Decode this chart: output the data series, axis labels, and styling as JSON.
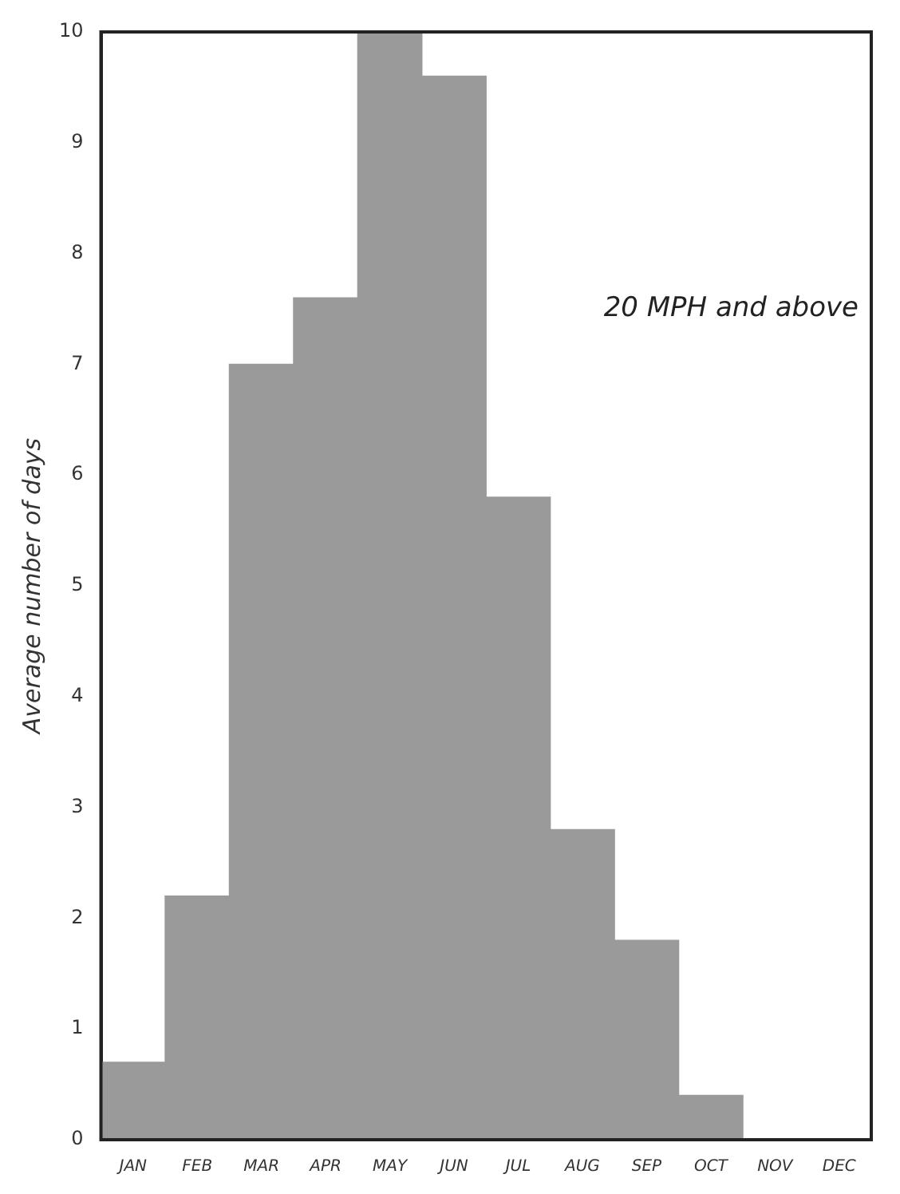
{
  "chart_data": {
    "type": "bar",
    "ylabel": "Average number of days",
    "categories": [
      "JAN",
      "FEB",
      "MAR",
      "APR",
      "MAY",
      "JUN",
      "JUL",
      "AUG",
      "SEP",
      "OCT",
      "NOV",
      "DEC"
    ],
    "values": [
      0.7,
      2.2,
      7.0,
      7.6,
      10.0,
      9.6,
      5.8,
      2.8,
      1.8,
      0.4,
      0,
      0
    ],
    "color": "#9a9a9a",
    "ylim": [
      0,
      10
    ],
    "yticks": [
      0,
      1,
      2,
      3,
      4,
      5,
      6,
      7,
      8,
      9,
      10
    ],
    "grid": false,
    "annotations": [
      "20 MPH and above"
    ]
  }
}
